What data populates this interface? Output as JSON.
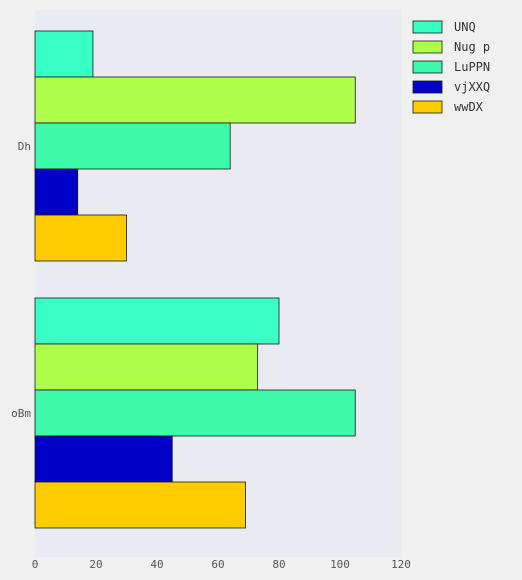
{
  "chart_data": {
    "type": "bar",
    "orientation": "horizontal",
    "categories": [
      "Dh",
      "oBm"
    ],
    "series": [
      {
        "name": "UNQ",
        "color": "#3affc5",
        "values": [
          19,
          80
        ]
      },
      {
        "name": "Nug p",
        "color": "#adff4a",
        "values": [
          105,
          73
        ]
      },
      {
        "name": "LuPPN",
        "color": "#3dfaaa",
        "values": [
          64,
          105
        ]
      },
      {
        "name": "vjXXQ",
        "color": "#0000c8",
        "values": [
          14,
          45
        ]
      },
      {
        "name": "wwDX",
        "color": "#ffcc00",
        "values": [
          30,
          69
        ]
      }
    ],
    "xlim": [
      0,
      120
    ],
    "xticks": [
      "0",
      "20",
      "40",
      "60",
      "80",
      "100",
      "120"
    ],
    "title": "",
    "xlabel": "",
    "ylabel": "",
    "grid": false,
    "legend_position": "top-right",
    "plot_background": "#eaeaf2"
  }
}
